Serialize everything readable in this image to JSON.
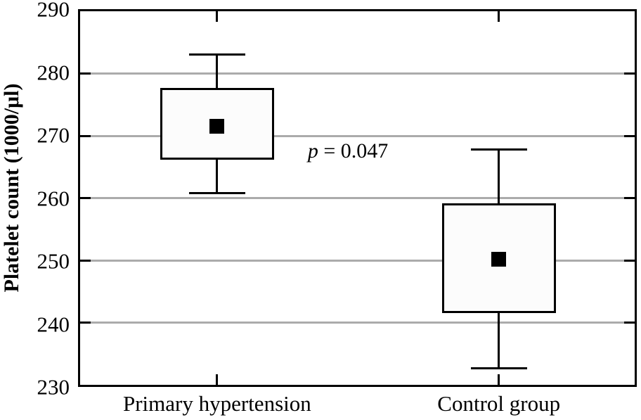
{
  "chart_data": {
    "type": "boxplot",
    "title": "",
    "ylabel": "Platelet count (1000/μl)",
    "xlabel": "",
    "ylim": [
      230,
      290
    ],
    "yticks": [
      230,
      240,
      250,
      260,
      270,
      280,
      290
    ],
    "gridlines": [
      240,
      250,
      260,
      270,
      280
    ],
    "grid_on": true,
    "grid_color": "#ababab",
    "box_fill_color": "#fcfcfc",
    "line_color": "#000000",
    "marker": "filled-square",
    "categories": [
      "Primary hypertension",
      "Control group"
    ],
    "category_positions": [
      0.247,
      0.755
    ],
    "series": [
      {
        "name": "Primary hypertension",
        "whisker_high": 283.0,
        "box_top": 277.7,
        "mean": 271.5,
        "box_bottom": 266.2,
        "whisker_low": 260.8
      },
      {
        "name": "Control group",
        "whisker_high": 267.8,
        "box_top": 259.2,
        "mean": 250.2,
        "box_bottom": 241.5,
        "whisker_low": 232.7
      }
    ],
    "annotation": {
      "variable": "p",
      "text": " = 0.047",
      "x_fraction": 0.483,
      "y_value": 267.4
    }
  }
}
